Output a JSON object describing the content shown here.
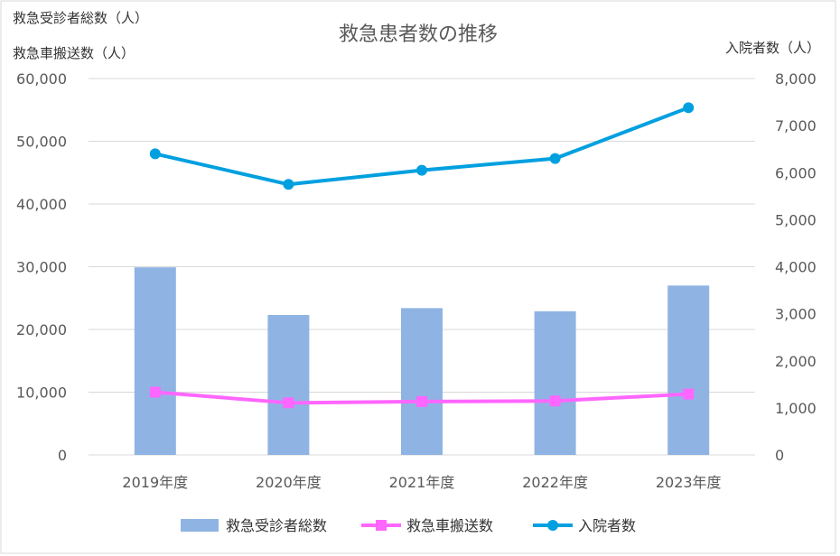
{
  "chart_data": {
    "type": "bar",
    "title": "救急患者数の推移",
    "left_axis_titles": [
      "救急受診者総数（人）",
      "救急車搬送数（人）"
    ],
    "right_axis_title": "入院者数（人）",
    "categories": [
      "2019年度",
      "2020年度",
      "2021年度",
      "2022年度",
      "2023年度"
    ],
    "y_left": {
      "min": 0,
      "max": 60000,
      "ticks": [
        "0",
        "10,000",
        "20,000",
        "30,000",
        "40,000",
        "50,000",
        "60,000"
      ]
    },
    "y_right": {
      "min": 0,
      "max": 8000,
      "ticks": [
        "0",
        "1,000",
        "2,000",
        "3,000",
        "4,000",
        "5,000",
        "6,000",
        "7,000",
        "8,000"
      ]
    },
    "grid": true,
    "legend_position": "bottom",
    "series": [
      {
        "name": "救急受診者総数",
        "type": "bar",
        "axis": "left",
        "color": "#8FB4E3",
        "values": [
          29900,
          22300,
          23400,
          22900,
          27000
        ]
      },
      {
        "name": "救急車搬送数",
        "type": "line",
        "axis": "left",
        "color": "#FF66FF",
        "marker": "square",
        "values": [
          10000,
          8300,
          8500,
          8600,
          9700
        ]
      },
      {
        "name": "入院者数",
        "type": "line",
        "axis": "right",
        "color": "#00A0E0",
        "marker": "circle",
        "values": [
          6400,
          5750,
          6050,
          6300,
          7380
        ]
      }
    ]
  }
}
